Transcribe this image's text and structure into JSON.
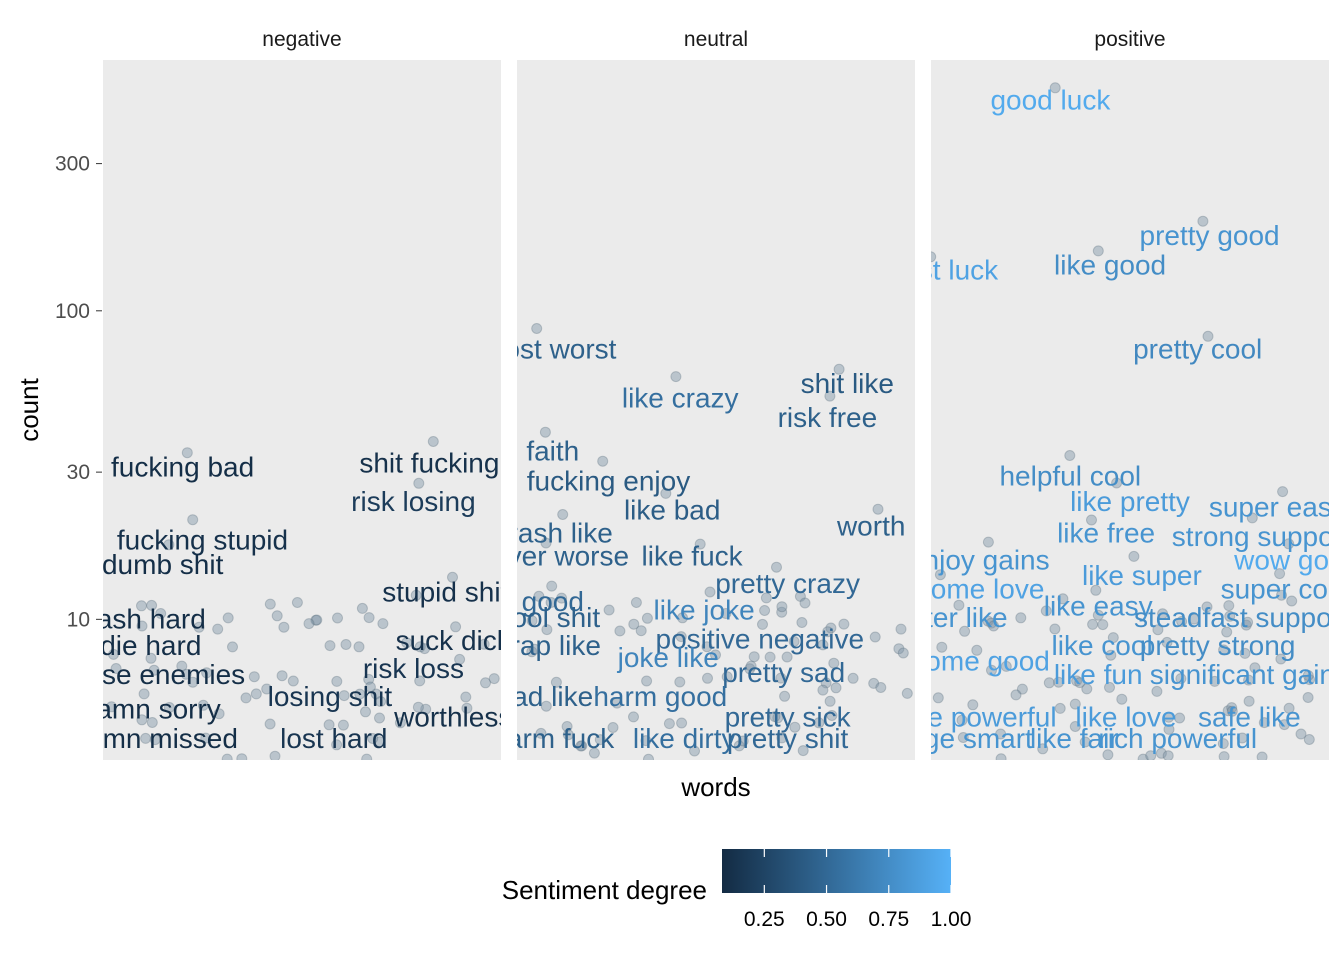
{
  "chart_data": {
    "type": "scatter",
    "title": "",
    "xlabel": "words",
    "ylabel": "count",
    "y_scale": "log10",
    "y_ticks": [
      10,
      30,
      100,
      300
    ],
    "y_tick_labels": [
      "10",
      "30",
      "100",
      "300"
    ],
    "ylim": [
      3.5,
      650
    ],
    "grid": false,
    "panel_background": "#ebebeb",
    "point_color": "#7f95a6",
    "facets": [
      {
        "name": "negative",
        "labels": [
          {
            "text": "fucking bad",
            "x": 0.2,
            "y": 31,
            "degree": 0.1
          },
          {
            "text": "shit fucking",
            "x": 0.82,
            "y": 32,
            "degree": 0.12
          },
          {
            "text": "risk losing",
            "x": 0.78,
            "y": 24,
            "degree": 0.2
          },
          {
            "text": "fucking stupid",
            "x": 0.25,
            "y": 18,
            "degree": 0.12
          },
          {
            "text": "dumb shit",
            "x": 0.15,
            "y": 15,
            "degree": 0.1
          },
          {
            "text": "stupid shit",
            "x": 0.86,
            "y": 12.2,
            "degree": 0.12
          },
          {
            "text": "trash hard",
            "x": 0.1,
            "y": 10,
            "degree": 0.1
          },
          {
            "text": "suck dick",
            "x": 0.88,
            "y": 8.5,
            "degree": 0.12
          },
          {
            "text": "die hard",
            "x": 0.12,
            "y": 8.2,
            "degree": 0.1
          },
          {
            "text": "risk loss",
            "x": 0.78,
            "y": 6.9,
            "degree": 0.15
          },
          {
            "text": "lose enemies",
            "x": 0.15,
            "y": 6.6,
            "degree": 0.1
          },
          {
            "text": "losing shit",
            "x": 0.57,
            "y": 5.6,
            "degree": 0.15
          },
          {
            "text": "damn sorry",
            "x": 0.12,
            "y": 5.1,
            "degree": 0.1
          },
          {
            "text": "worthless",
            "x": 0.88,
            "y": 4.8,
            "degree": 0.12
          },
          {
            "text": "damn missed",
            "x": 0.13,
            "y": 4.1,
            "degree": 0.1
          },
          {
            "text": "lost hard",
            "x": 0.58,
            "y": 4.1,
            "degree": 0.15
          }
        ]
      },
      {
        "name": "neutral",
        "labels": [
          {
            "text": "most worst",
            "x": 0.08,
            "y": 75,
            "degree": 0.45
          },
          {
            "text": "like crazy",
            "x": 0.41,
            "y": 52,
            "degree": 0.55
          },
          {
            "text": "shit like",
            "x": 0.83,
            "y": 58,
            "degree": 0.4
          },
          {
            "text": "risk free",
            "x": 0.78,
            "y": 45,
            "degree": 0.45
          },
          {
            "text": "faith",
            "x": 0.09,
            "y": 35,
            "degree": 0.45
          },
          {
            "text": "fucking enjoy",
            "x": 0.23,
            "y": 28,
            "degree": 0.4
          },
          {
            "text": "like bad",
            "x": 0.39,
            "y": 22.5,
            "degree": 0.42
          },
          {
            "text": "worth",
            "x": 0.89,
            "y": 20,
            "degree": 0.45
          },
          {
            "text": "trash like",
            "x": 0.1,
            "y": 19,
            "degree": 0.45
          },
          {
            "text": "never worse",
            "x": 0.09,
            "y": 16,
            "degree": 0.45
          },
          {
            "text": "like fuck",
            "x": 0.44,
            "y": 16,
            "degree": 0.45
          },
          {
            "text": "pretty crazy",
            "x": 0.68,
            "y": 13,
            "degree": 0.5
          },
          {
            "text": "good",
            "x": 0.09,
            "y": 11.4,
            "degree": 0.5
          },
          {
            "text": "like joke",
            "x": 0.47,
            "y": 10.7,
            "degree": 0.7
          },
          {
            "text": "cool shit",
            "x": 0.08,
            "y": 10.1,
            "degree": 0.45
          },
          {
            "text": "crap like",
            "x": 0.08,
            "y": 8.2,
            "degree": 0.45
          },
          {
            "text": "positive negative",
            "x": 0.61,
            "y": 8.6,
            "degree": 0.5
          },
          {
            "text": "joke like",
            "x": 0.38,
            "y": 7.5,
            "degree": 0.7
          },
          {
            "text": "pretty sad",
            "x": 0.67,
            "y": 6.7,
            "degree": 0.5
          },
          {
            "text": "bad like",
            "x": 0.07,
            "y": 5.6,
            "degree": 0.45
          },
          {
            "text": "harm good",
            "x": 0.36,
            "y": 5.6,
            "degree": 0.55
          },
          {
            "text": "pretty sick",
            "x": 0.68,
            "y": 4.8,
            "degree": 0.5
          },
          {
            "text": "harm fuck",
            "x": 0.09,
            "y": 4.1,
            "degree": 0.45
          },
          {
            "text": "like dirty",
            "x": 0.42,
            "y": 4.1,
            "degree": 0.55
          },
          {
            "text": "pretty shit",
            "x": 0.68,
            "y": 4.1,
            "degree": 0.5
          }
        ]
      },
      {
        "name": "positive",
        "labels": [
          {
            "text": "good luck",
            "x": 0.3,
            "y": 480,
            "degree": 0.95
          },
          {
            "text": "pretty good",
            "x": 0.7,
            "y": 175,
            "degree": 0.8
          },
          {
            "text": "best luck",
            "x": 0.03,
            "y": 135,
            "degree": 0.9
          },
          {
            "text": "like good",
            "x": 0.45,
            "y": 140,
            "degree": 0.75
          },
          {
            "text": "pretty cool",
            "x": 0.67,
            "y": 75,
            "degree": 0.72
          },
          {
            "text": "helpful cool",
            "x": 0.35,
            "y": 29,
            "degree": 0.75
          },
          {
            "text": "like pretty",
            "x": 0.5,
            "y": 24,
            "degree": 0.85
          },
          {
            "text": "super easy",
            "x": 0.87,
            "y": 23,
            "degree": 0.8
          },
          {
            "text": "like free",
            "x": 0.44,
            "y": 19,
            "degree": 0.8
          },
          {
            "text": "strong support",
            "x": 0.83,
            "y": 18.5,
            "degree": 0.8
          },
          {
            "text": "enjoy gains",
            "x": 0.12,
            "y": 15.5,
            "degree": 0.8
          },
          {
            "text": "wow good",
            "x": 0.92,
            "y": 15.5,
            "degree": 0.95
          },
          {
            "text": "like super",
            "x": 0.53,
            "y": 13.8,
            "degree": 0.85
          },
          {
            "text": "awesome love",
            "x": 0.06,
            "y": 12.5,
            "degree": 0.9
          },
          {
            "text": "super cool",
            "x": 0.89,
            "y": 12.5,
            "degree": 0.8
          },
          {
            "text": "like easy",
            "x": 0.42,
            "y": 11.0,
            "degree": 0.8
          },
          {
            "text": "steadfast support",
            "x": 0.78,
            "y": 10.1,
            "degree": 0.75
          },
          {
            "text": "better like",
            "x": 0.04,
            "y": 10.1,
            "degree": 0.8
          },
          {
            "text": "like cool",
            "x": 0.43,
            "y": 8.2,
            "degree": 0.8
          },
          {
            "text": "pretty strong",
            "x": 0.72,
            "y": 8.2,
            "degree": 0.75
          },
          {
            "text": "awesome good",
            "x": 0.06,
            "y": 7.3,
            "degree": 0.9
          },
          {
            "text": "like fun",
            "x": 0.42,
            "y": 6.6,
            "degree": 0.85
          },
          {
            "text": "significant gains",
            "x": 0.8,
            "y": 6.6,
            "degree": 0.8
          },
          {
            "text": "like powerful",
            "x": 0.12,
            "y": 4.8,
            "degree": 0.85
          },
          {
            "text": "like love",
            "x": 0.49,
            "y": 4.8,
            "degree": 0.85
          },
          {
            "text": "safe like",
            "x": 0.8,
            "y": 4.8,
            "degree": 0.8
          },
          {
            "text": "huge smart",
            "x": 0.08,
            "y": 4.1,
            "degree": 0.8
          },
          {
            "text": "like fair",
            "x": 0.36,
            "y": 4.1,
            "degree": 0.8
          },
          {
            "text": "rich powerful",
            "x": 0.62,
            "y": 4.1,
            "degree": 0.8
          }
        ]
      }
    ],
    "legend": {
      "title": "Sentiment degree",
      "placement": "bottom",
      "low_color": "#132b43",
      "high_color": "#56b1f7",
      "range": [
        0.08,
        1.0
      ],
      "ticks": [
        0.25,
        0.5,
        0.75,
        1.0
      ],
      "tick_labels": [
        "0.25",
        "0.50",
        "0.75",
        "1.00"
      ]
    }
  }
}
